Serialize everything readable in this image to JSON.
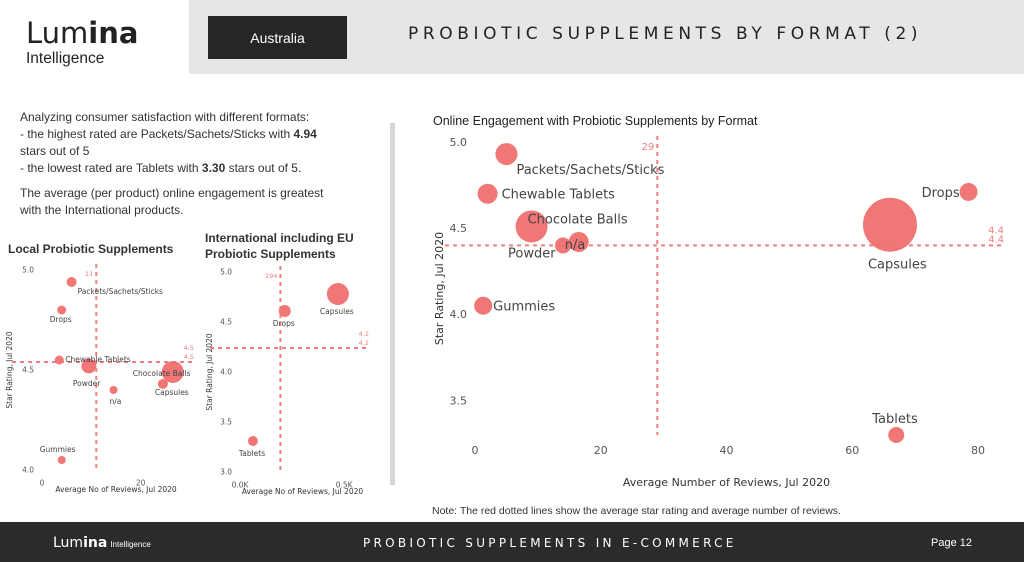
{
  "header": {
    "logo_word": "Lumina",
    "logo_sub": "Intelligence",
    "country": "Australia",
    "title": "PROBIOTIC SUPPLEMENTS BY FORMAT (2)"
  },
  "intro": {
    "line1": "Analyzing consumer satisfaction with different formats:",
    "hi_pre": "- the highest rated are ",
    "hi_format": "Packets/Sachets/Sticks",
    "hi_mid": " with ",
    "hi_val": "4.94",
    "hi_post": "stars out of 5",
    "lo_pre": "- the lowest rated are ",
    "lo_format": "Tablets",
    "lo_mid": " with ",
    "lo_val": "3.30",
    "lo_post": " stars out of 5.",
    "eng1": "The average (per product) online engagement is greatest",
    "eng_pre": "with the ",
    "eng_group": "International",
    "eng_post": " products."
  },
  "colors": {
    "bubble": "#f07070",
    "refline": "#f08080",
    "label": "#444444"
  },
  "chart_data": [
    {
      "id": "local",
      "type": "scatter",
      "title": "Local Probiotic Supplements",
      "xlabel": "Average No of Reviews, Jul 2020",
      "ylabel": "Star Rating, Jul 2020",
      "xlim": [
        0,
        30
      ],
      "ylim": [
        4.0,
        5.0
      ],
      "xticks": [
        {
          "v": 0,
          "label": "0"
        },
        {
          "v": 20,
          "label": "20"
        }
      ],
      "yticks": [
        {
          "v": 4.0,
          "label": "4.0"
        },
        {
          "v": 4.5,
          "label": "4.5"
        },
        {
          "v": 5.0,
          "label": "5.0"
        }
      ],
      "avg_x": 11,
      "avg_x_label": "11",
      "avg_y": 4.54,
      "avg_y_labels": [
        "4.5",
        "4.5"
      ],
      "points": [
        {
          "label": "Packets/Sachets/Sticks",
          "x": 6,
          "y": 4.94,
          "r": 5
        },
        {
          "label": "Drops",
          "x": 4,
          "y": 4.8,
          "r": 4.5
        },
        {
          "label": "Chewable Tablets",
          "x": 3.5,
          "y": 4.55,
          "r": 4.5
        },
        {
          "label": "Powder",
          "x": 9.5,
          "y": 4.52,
          "r": 7.5
        },
        {
          "label": "Chocolate Balls",
          "x": 26.5,
          "y": 4.49,
          "r": 11
        },
        {
          "label": "Capsules",
          "x": 24.5,
          "y": 4.43,
          "r": 5
        },
        {
          "label": "n/a",
          "x": 14.5,
          "y": 4.4,
          "r": 4
        },
        {
          "label": "Gummies",
          "x": 4,
          "y": 4.05,
          "r": 4
        }
      ]
    },
    {
      "id": "intl",
      "type": "scatter",
      "title": "International including EU Probiotic Supplements",
      "xlabel": "Average No of Reviews, Jul 2020",
      "ylabel": "Star Rating, Jul 2020",
      "xlim": [
        0,
        600
      ],
      "ylim": [
        3.0,
        5.0
      ],
      "xticks": [
        {
          "v": 0,
          "label": "0.0K"
        },
        {
          "v": 500,
          "label": "0.5K"
        }
      ],
      "yticks": [
        {
          "v": 3.0,
          "label": "3.0"
        },
        {
          "v": 3.5,
          "label": "3.5"
        },
        {
          "v": 4.0,
          "label": "4.0"
        },
        {
          "v": 4.5,
          "label": "4.5"
        },
        {
          "v": 5.0,
          "label": "5.0"
        }
      ],
      "avg_x": 194,
      "avg_x_label": "194",
      "avg_y": 4.24,
      "avg_y_labels": [
        "4.2",
        "4.2"
      ],
      "points": [
        {
          "label": "Capsules",
          "x": 470,
          "y": 4.78,
          "r": 11
        },
        {
          "label": "Drops",
          "x": 215,
          "y": 4.61,
          "r": 6
        },
        {
          "label": "Tablets",
          "x": 62,
          "y": 3.31,
          "r": 5
        }
      ]
    },
    {
      "id": "online",
      "type": "scatter",
      "title": "Online Engagement with Probiotic Supplements by Format",
      "xlabel": "Average Number of Reviews, Jul 2020",
      "ylabel": "Star Rating, Jul 2020",
      "xlim": [
        0,
        80
      ],
      "ylim": [
        3.3,
        5.0
      ],
      "xticks": [
        {
          "v": 0,
          "label": "0"
        },
        {
          "v": 20,
          "label": "20"
        },
        {
          "v": 40,
          "label": "40"
        },
        {
          "v": 60,
          "label": "60"
        },
        {
          "v": 80,
          "label": "80"
        }
      ],
      "yticks": [
        {
          "v": 3.5,
          "label": "3.5"
        },
        {
          "v": 4.0,
          "label": "4.0"
        },
        {
          "v": 4.5,
          "label": "4.5"
        },
        {
          "v": 5.0,
          "label": "5.0"
        }
      ],
      "avg_x": 29,
      "avg_x_label": "29",
      "avg_y": 4.4,
      "avg_y_labels": [
        "4.4",
        "4.4"
      ],
      "points": [
        {
          "label": "Packets/Sachets/Sticks",
          "x": 5,
          "y": 4.93,
          "r": 11
        },
        {
          "label": "Chewable Tablets",
          "x": 2,
          "y": 4.7,
          "r": 10
        },
        {
          "label": "Chocolate Balls",
          "x": 9,
          "y": 4.51,
          "r": 16
        },
        {
          "label": "Powder",
          "x": 14,
          "y": 4.4,
          "r": 8
        },
        {
          "label": "n/a",
          "x": 16.5,
          "y": 4.42,
          "r": 10
        },
        {
          "label": "Drops",
          "x": 78.5,
          "y": 4.71,
          "r": 9
        },
        {
          "label": "Capsules",
          "x": 66,
          "y": 4.52,
          "r": 27
        },
        {
          "label": "Gummies",
          "x": 1.3,
          "y": 4.05,
          "r": 9
        },
        {
          "label": "Tablets",
          "x": 67,
          "y": 3.3,
          "r": 8
        }
      ]
    }
  ],
  "note": "Note: The red dotted lines show the average star rating and average number of reviews.",
  "footer": {
    "logo_word": "Lumina",
    "logo_sub": "Intelligence",
    "title": "PROBIOTIC SUPPLEMENTS IN E-COMMERCE",
    "page": "Page  12"
  }
}
